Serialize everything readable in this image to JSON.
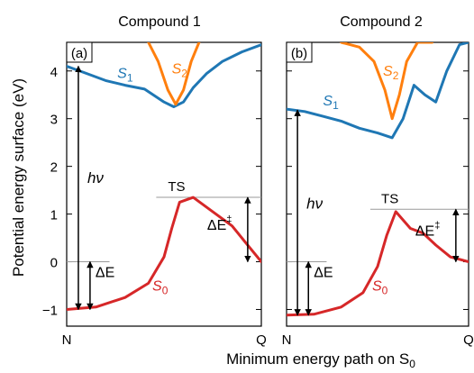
{
  "ylabel": "Potential energy surface (eV)",
  "xlabel": "Minimum energy path on S",
  "xlabel_sub": "0",
  "ylim": [
    -1.35,
    4.6
  ],
  "yticks": [
    -1,
    0,
    1,
    2,
    3,
    4
  ],
  "xtick_labels": [
    "N",
    "Q"
  ],
  "colors": {
    "S0": "#d62728",
    "S1": "#1f77b4",
    "S2": "#ff7f0e"
  },
  "annotations": {
    "hv": "hν",
    "TS": "TS",
    "dE": "ΔE",
    "dEts": "ΔE",
    "ddagger": "‡",
    "S": "S",
    "sub0": "0",
    "sub1": "1",
    "sub2": "2"
  },
  "chart_data": [
    {
      "type": "line",
      "title": "Compound 1",
      "panel_label": "(a)",
      "series": [
        {
          "name": "S0",
          "x": [
            0,
            0.15,
            0.3,
            0.42,
            0.5,
            0.54,
            0.58,
            0.65,
            0.75,
            0.85,
            0.92,
            1.0
          ],
          "y": [
            -1.0,
            -0.95,
            -0.75,
            -0.45,
            0.1,
            0.7,
            1.25,
            1.35,
            1.05,
            0.75,
            0.4,
            0.0
          ]
        },
        {
          "name": "S1",
          "x": [
            0,
            0.1,
            0.2,
            0.3,
            0.4,
            0.5,
            0.55,
            0.6,
            0.65,
            0.72,
            0.8,
            0.9,
            1.0
          ],
          "y": [
            4.1,
            3.95,
            3.8,
            3.7,
            3.62,
            3.35,
            3.25,
            3.35,
            3.65,
            3.95,
            4.2,
            4.4,
            4.55
          ]
        },
        {
          "name": "S2",
          "x": [
            0.42,
            0.47,
            0.52,
            0.56,
            0.6,
            0.64,
            0.68
          ],
          "y": [
            4.6,
            4.2,
            3.6,
            3.3,
            3.6,
            4.2,
            4.6
          ]
        }
      ],
      "ts_energy": 1.35,
      "dE": 1.0,
      "dE_ts": 1.35,
      "hv": 5.1
    },
    {
      "type": "line",
      "title": "Compound 2",
      "panel_label": "(b)",
      "series": [
        {
          "name": "S0",
          "x": [
            0,
            0.15,
            0.3,
            0.42,
            0.5,
            0.55,
            0.6,
            0.68,
            0.75,
            0.82,
            0.9,
            1.0
          ],
          "y": [
            -1.12,
            -1.1,
            -0.95,
            -0.65,
            -0.1,
            0.55,
            1.05,
            0.7,
            0.6,
            0.35,
            0.1,
            0.0
          ]
        },
        {
          "name": "S1",
          "x": [
            0,
            0.1,
            0.2,
            0.3,
            0.4,
            0.5,
            0.58,
            0.64,
            0.7,
            0.76,
            0.82,
            0.88,
            0.95,
            1.0
          ],
          "y": [
            3.2,
            3.15,
            3.05,
            2.95,
            2.8,
            2.7,
            2.6,
            3.0,
            3.7,
            3.5,
            3.35,
            4.0,
            4.55,
            4.6
          ]
        },
        {
          "name": "S2",
          "x": [
            0.3,
            0.4,
            0.48,
            0.54,
            0.58,
            0.62,
            0.66,
            0.72,
            0.8
          ],
          "y": [
            4.6,
            4.5,
            4.2,
            3.6,
            3.0,
            3.5,
            4.2,
            4.6,
            4.6
          ]
        }
      ],
      "ts_energy": 1.1,
      "dE": 1.12,
      "dE_ts": 1.1,
      "hv": 4.3
    }
  ]
}
